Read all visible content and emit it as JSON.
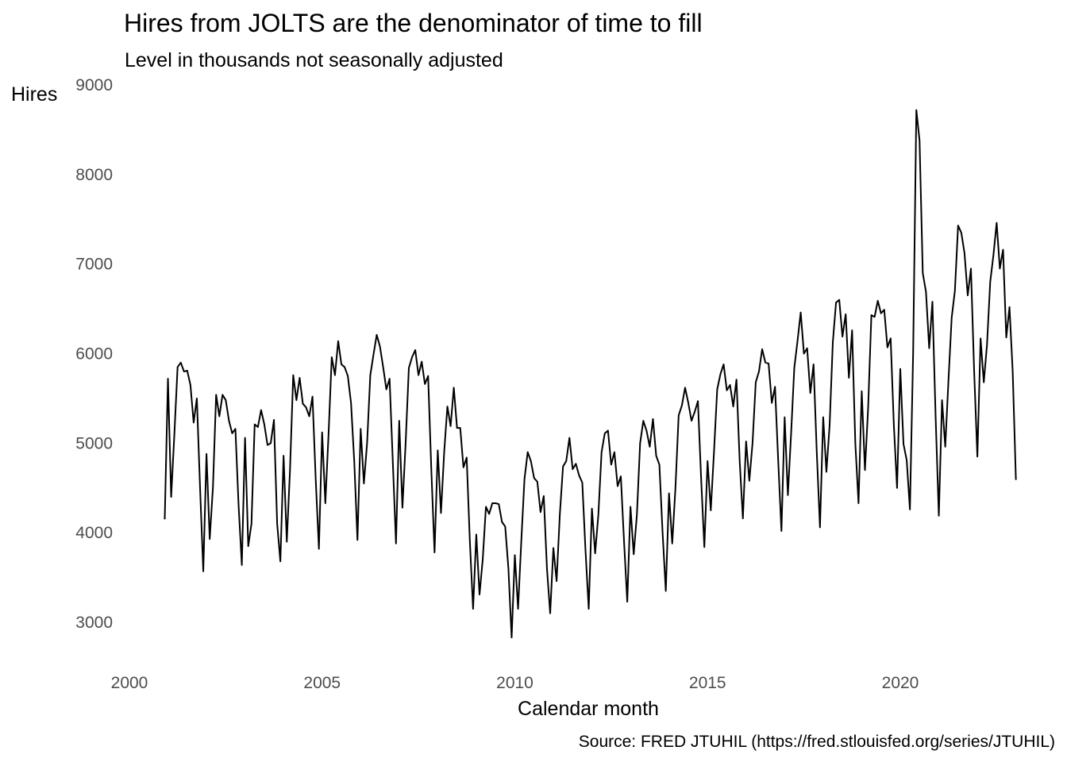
{
  "chart_data": {
    "type": "line",
    "title": "Hires from JOLTS are the denominator of time to fill",
    "subtitle": "Level in thousands not seasonally adjusted",
    "xlabel": "Calendar month",
    "ylabel": "Hires",
    "caption": "Source: FRED JTUHIL (https://fred.stlouisfed.org/series/JTUHIL)",
    "xlim": [
      2000,
      2023
    ],
    "ylim": [
      2500,
      9000
    ],
    "x_ticks": [
      2000,
      2005,
      2010,
      2015,
      2020
    ],
    "y_ticks": [
      3000,
      4000,
      5000,
      6000,
      7000,
      8000,
      9000
    ],
    "grid": false,
    "line_color": "#000000",
    "series": [
      {
        "start": "2000-12",
        "frequency": "monthly",
        "values": [
          4150,
          5720,
          4400,
          5100,
          5850,
          5900,
          5800,
          5810,
          5650,
          5230,
          5500,
          4500,
          3570,
          4880,
          3930,
          4500,
          5540,
          5300,
          5540,
          5480,
          5250,
          5110,
          5160,
          4300,
          3640,
          5060,
          3850,
          4100,
          5210,
          5180,
          5370,
          5210,
          4980,
          5000,
          5260,
          4100,
          3680,
          4860,
          3900,
          4700,
          5760,
          5480,
          5730,
          5440,
          5400,
          5300,
          5520,
          4600,
          3820,
          5120,
          4330,
          5100,
          5960,
          5760,
          6140,
          5880,
          5850,
          5750,
          5450,
          4800,
          3920,
          5160,
          4550,
          5000,
          5760,
          5990,
          6210,
          6080,
          5850,
          5600,
          5720,
          4800,
          3880,
          5250,
          4280,
          5000,
          5840,
          5960,
          6040,
          5760,
          5910,
          5660,
          5750,
          4700,
          3780,
          4920,
          4220,
          4900,
          5410,
          5190,
          5620,
          5170,
          5170,
          4730,
          4840,
          3900,
          3150,
          3980,
          3310,
          3700,
          4290,
          4210,
          4330,
          4330,
          4320,
          4120,
          4070,
          3600,
          2830,
          3750,
          3150,
          3900,
          4600,
          4900,
          4800,
          4610,
          4570,
          4230,
          4410,
          3600,
          3100,
          3830,
          3460,
          4200,
          4740,
          4800,
          5060,
          4710,
          4770,
          4640,
          4560,
          3800,
          3150,
          4270,
          3770,
          4200,
          4900,
          5110,
          5140,
          4760,
          4900,
          4520,
          4630,
          3900,
          3230,
          4290,
          3760,
          4200,
          5000,
          5250,
          5140,
          4960,
          5270,
          4860,
          4760,
          4000,
          3350,
          4440,
          3880,
          4500,
          5310,
          5420,
          5620,
          5450,
          5250,
          5350,
          5470,
          4600,
          3840,
          4800,
          4250,
          4900,
          5600,
          5770,
          5880,
          5590,
          5650,
          5410,
          5710,
          4800,
          4160,
          5020,
          4580,
          5000,
          5680,
          5800,
          6050,
          5900,
          5890,
          5450,
          5630,
          4800,
          4020,
          5290,
          4420,
          5100,
          5840,
          6140,
          6460,
          6000,
          6060,
          5560,
          5880,
          4900,
          4060,
          5290,
          4680,
          5200,
          6130,
          6570,
          6600,
          6190,
          6440,
          5730,
          6260,
          5000,
          4330,
          5580,
          4700,
          5400,
          6430,
          6410,
          6590,
          6450,
          6490,
          6070,
          6170,
          5200,
          4500,
          5830,
          4990,
          4810,
          4260,
          6000,
          8720,
          8380,
          6900,
          6690,
          6060,
          6580,
          5300,
          4190,
          5480,
          4960,
          5700,
          6400,
          6700,
          7430,
          7350,
          7120,
          6650,
          6950,
          5800,
          4850,
          6170,
          5680,
          6100,
          6800,
          7100,
          7460,
          6950,
          7160,
          6180,
          6520,
          5800,
          4590
        ]
      }
    ]
  }
}
